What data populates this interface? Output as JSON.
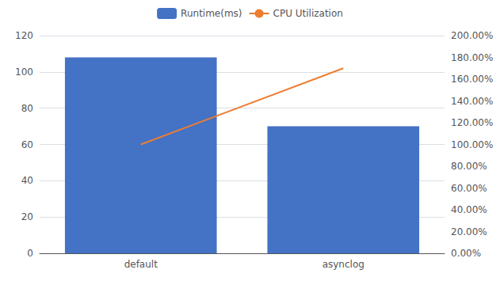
{
  "chart_data": {
    "type": "bar",
    "categories": [
      "default",
      "asynclog"
    ],
    "series": [
      {
        "name": "Runtime(ms)",
        "type": "bar",
        "color": "#4472C4",
        "values": [
          108,
          70
        ]
      },
      {
        "name": "CPU Utilization",
        "type": "line",
        "color": "#ED7D31",
        "values": [
          1.0,
          1.7
        ],
        "axis": "y2"
      }
    ],
    "ylim": [
      0,
      120
    ],
    "yticks": [
      0,
      20,
      40,
      60,
      80,
      100,
      120
    ],
    "y2lim": [
      0.0,
      2.0
    ],
    "y2ticks": [
      {
        "value": 0.0,
        "label": "0.00%"
      },
      {
        "value": 0.2,
        "label": "20.00%"
      },
      {
        "value": 0.4,
        "label": "40.00%"
      },
      {
        "value": 0.6,
        "label": "60.00%"
      },
      {
        "value": 0.8,
        "label": "80.00%"
      },
      {
        "value": 1.0,
        "label": "100.00%"
      },
      {
        "value": 1.2,
        "label": "120.00%"
      },
      {
        "value": 1.4,
        "label": "140.00%"
      },
      {
        "value": 1.6,
        "label": "160.00%"
      },
      {
        "value": 1.8,
        "label": "180.00%"
      },
      {
        "value": 2.0,
        "label": "200.00%"
      }
    ],
    "grid": true,
    "legend": "top"
  }
}
